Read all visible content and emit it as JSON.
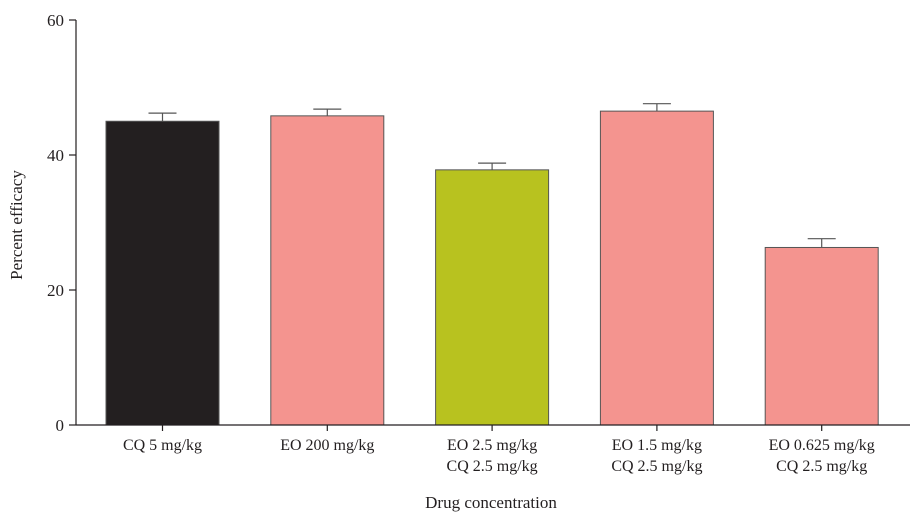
{
  "chart_data": {
    "type": "bar",
    "categories": [
      [
        "CQ 5 mg/kg"
      ],
      [
        "EO 200 mg/kg"
      ],
      [
        "EO 2.5 mg/kg",
        "CQ 2.5 mg/kg"
      ],
      [
        "EO 1.5 mg/kg",
        "CQ 2.5 mg/kg"
      ],
      [
        "EO 0.625 mg/kg",
        "CQ 2.5 mg/kg"
      ]
    ],
    "values": [
      45,
      45.8,
      37.8,
      46.5,
      26.3
    ],
    "errors": [
      1.2,
      1.0,
      1.0,
      1.1,
      1.3
    ],
    "colors": [
      "#231f20",
      "#f4948f",
      "#b8c21f",
      "#f4948f",
      "#f4948f"
    ],
    "xlabel": "Drug concentration",
    "ylabel": "Percent efficacy",
    "ylim": [
      0,
      60
    ],
    "yticks": [
      0,
      20,
      40,
      60
    ],
    "grid": false
  }
}
